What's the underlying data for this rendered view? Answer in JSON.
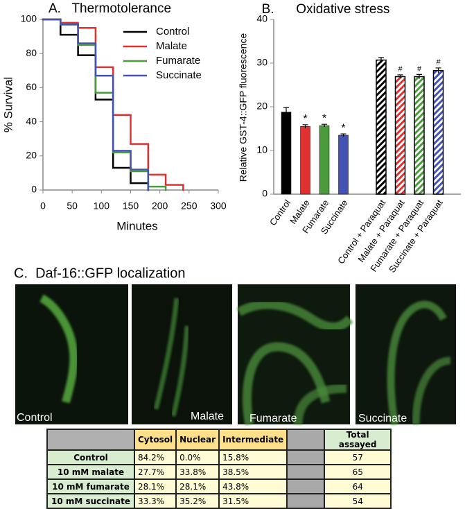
{
  "chart_data": [
    {
      "type": "step",
      "title": "A.   Thermotolerance",
      "x_label": "Minutes",
      "y_label": "% Survival",
      "x": [
        0,
        30,
        60,
        90,
        120,
        150,
        180,
        210,
        240
      ],
      "series": [
        {
          "name": "Control",
          "color": "#000000",
          "values": [
            100,
            91,
            79,
            53,
            13,
            4,
            0,
            null,
            null
          ]
        },
        {
          "name": "Malate",
          "color": "#e03131",
          "values": [
            100,
            98,
            95,
            72,
            44,
            27,
            9,
            3,
            0
          ]
        },
        {
          "name": "Fumarate",
          "color": "#4b9a3c",
          "values": [
            100,
            97,
            85,
            57,
            22,
            11,
            2,
            0,
            null
          ]
        },
        {
          "name": "Succinate",
          "color": "#4453b3",
          "values": [
            100,
            97,
            86,
            67,
            23,
            12,
            0,
            null,
            null
          ]
        }
      ],
      "xlim": [
        0,
        300
      ],
      "xticks": [
        0,
        50,
        100,
        150,
        200,
        250,
        300
      ],
      "ylim": [
        0,
        100
      ],
      "yticks": [
        0,
        20,
        40,
        60,
        80,
        100
      ],
      "legend": "upper right"
    },
    {
      "type": "bar",
      "title": "B.      Oxidative stress",
      "y_label": "Relative GST-4::GFP fluorescence",
      "categories": [
        "Control",
        "Malate",
        "Fumarate",
        "Succinate",
        "Control + Paraquat",
        "Malate + Paraquat",
        "Fumarate + Paraquat",
        "Succinate + Paraquat"
      ],
      "values": [
        18.8,
        15.5,
        15.7,
        13.5,
        30.7,
        26.9,
        26.9,
        28.3
      ],
      "errors": [
        1.0,
        0.4,
        0.3,
        0.3,
        0.6,
        0.4,
        0.5,
        0.6
      ],
      "markers": [
        null,
        "*",
        "*",
        "*",
        null,
        "#",
        "#",
        "#"
      ],
      "colors": [
        "#000000",
        "#e03131",
        "#4b9a3c",
        "#4453b3",
        "#000000",
        "#e03131",
        "#4b9a3c",
        "#4453b3"
      ],
      "hatched": [
        false,
        false,
        false,
        false,
        true,
        true,
        true,
        true
      ],
      "ylim": [
        0,
        40
      ],
      "yticks": [
        0,
        10,
        20,
        30,
        40
      ]
    }
  ],
  "panel_c": {
    "title": "C.  Daf-16::GFP localization",
    "images": [
      "Control",
      "Malate",
      "Fumarate",
      "Succinate"
    ],
    "table": {
      "header": [
        "Cytosol",
        "Nuclear",
        "Intermediate",
        "Total assayed"
      ],
      "rows": [
        {
          "label": "Control",
          "values": [
            "84.2%",
            "0.0%",
            "15.8%",
            "57"
          ]
        },
        {
          "label": "10 mM malate",
          "values": [
            "27.7%",
            "33.8%",
            "38.5%",
            "65"
          ]
        },
        {
          "label": "10 mM fumarate",
          "values": [
            "28.1%",
            "28.1%",
            "43.8%",
            "64"
          ]
        },
        {
          "label": "10 mM succinate",
          "values": [
            "33.3%",
            "35.2%",
            "31.5%",
            "54"
          ]
        }
      ]
    }
  }
}
